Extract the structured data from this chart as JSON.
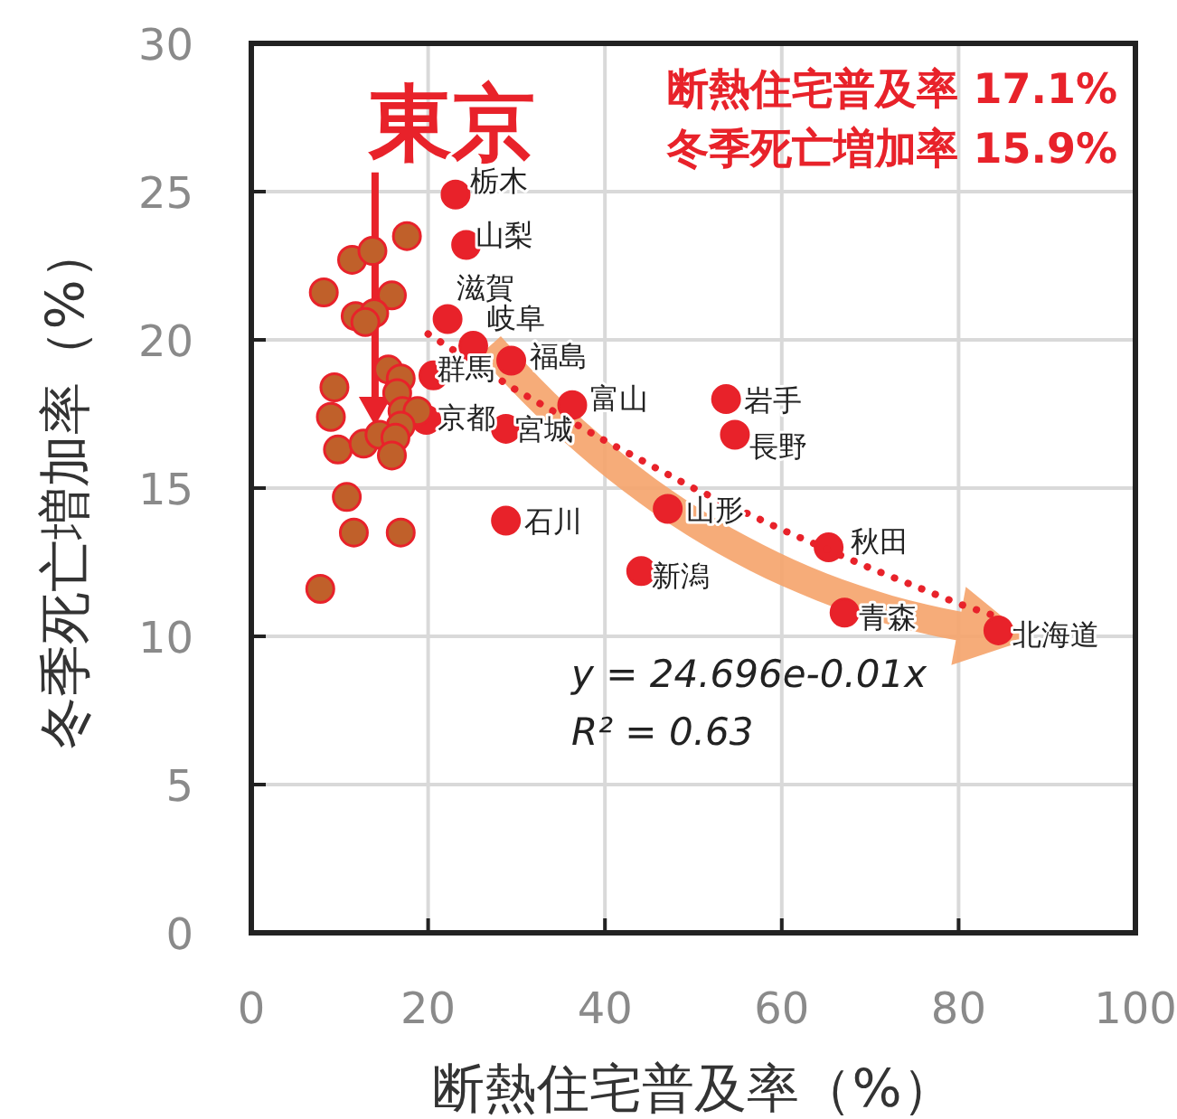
{
  "chart_data": {
    "type": "scatter",
    "xlabel": "断熱住宅普及率（%）",
    "ylabel": "冬季死亡増加率（%）",
    "xlim": [
      0,
      100
    ],
    "ylim": [
      0,
      30
    ],
    "xticks": [
      0,
      20,
      40,
      60,
      80,
      100
    ],
    "yticks": [
      0,
      5,
      10,
      15,
      20,
      25,
      30
    ],
    "grid": true,
    "marker": "circle",
    "series": [
      {
        "color": "#e8222a",
        "x": [
          23.1,
          24.3,
          22.2,
          25.1,
          29.4,
          20.6,
          19.8,
          28.8,
          28.8,
          36.3,
          53.7,
          54.7,
          47.1,
          44.1,
          65.3,
          67.1,
          84.5
        ],
        "values": [
          24.9,
          23.2,
          20.7,
          19.8,
          19.3,
          18.8,
          17.3,
          17.0,
          13.9,
          17.8,
          18.0,
          16.8,
          14.3,
          12.2,
          13.0,
          10.8,
          10.2
        ]
      },
      {
        "color": "#c0602a",
        "x": [
          17.6,
          11.4,
          13.7,
          8.2,
          15.9,
          11.8,
          13.9,
          12.9,
          15.5,
          16.9,
          9.4,
          16.5,
          9.0,
          17.1,
          18.8,
          16.9,
          9.8,
          12.7,
          14.5,
          16.3,
          15.9,
          10.8,
          11.6,
          16.9,
          7.8
        ],
        "values": [
          23.5,
          22.7,
          23.0,
          21.6,
          21.5,
          20.8,
          20.9,
          20.6,
          19.0,
          18.7,
          18.4,
          18.2,
          17.4,
          17.6,
          17.6,
          17.1,
          16.3,
          16.5,
          16.8,
          16.7,
          16.1,
          14.7,
          13.5,
          13.5,
          11.6
        ]
      },
      {
        "type": "line",
        "color": "#e8222a",
        "line_style": "dotted",
        "marker": "none",
        "x": [
          20,
          30,
          40,
          50,
          60,
          70,
          80,
          85
        ],
        "values": [
          20.2,
          18.3,
          16.6,
          15.0,
          13.6,
          12.3,
          11.1,
          10.6
        ]
      }
    ],
    "annotations": [
      {
        "text": "栃木",
        "x": 23.1,
        "y": 24.9
      },
      {
        "text": "山梨",
        "x": 24.3,
        "y": 23.2
      },
      {
        "text": "滋賀",
        "x": 22.2,
        "y": 20.7
      },
      {
        "text": "岐阜",
        "x": 25.1,
        "y": 19.8
      },
      {
        "text": "福島",
        "x": 29.4,
        "y": 19.3
      },
      {
        "text": "群馬",
        "x": 20.6,
        "y": 18.8
      },
      {
        "text": "京都",
        "x": 19.8,
        "y": 17.3
      },
      {
        "text": "宮城",
        "x": 28.8,
        "y": 17.0
      },
      {
        "text": "石川",
        "x": 28.8,
        "y": 13.9
      },
      {
        "text": "富山",
        "x": 36.3,
        "y": 17.8
      },
      {
        "text": "岩手",
        "x": 53.7,
        "y": 18.0
      },
      {
        "text": "長野",
        "x": 54.7,
        "y": 16.8
      },
      {
        "text": "山形",
        "x": 47.1,
        "y": 14.3
      },
      {
        "text": "新潟",
        "x": 44.1,
        "y": 12.2
      },
      {
        "text": "秋田",
        "x": 65.3,
        "y": 13.0
      },
      {
        "text": "青森",
        "x": 67.1,
        "y": 10.8
      },
      {
        "text": "北海道",
        "x": 84.5,
        "y": 10.2
      },
      "東京",
      "断熱住宅普及率 17.1%",
      "冬季死亡増加率 15.9%",
      "y = 24.696e-0.01x",
      "R² = 0.63"
    ]
  }
}
